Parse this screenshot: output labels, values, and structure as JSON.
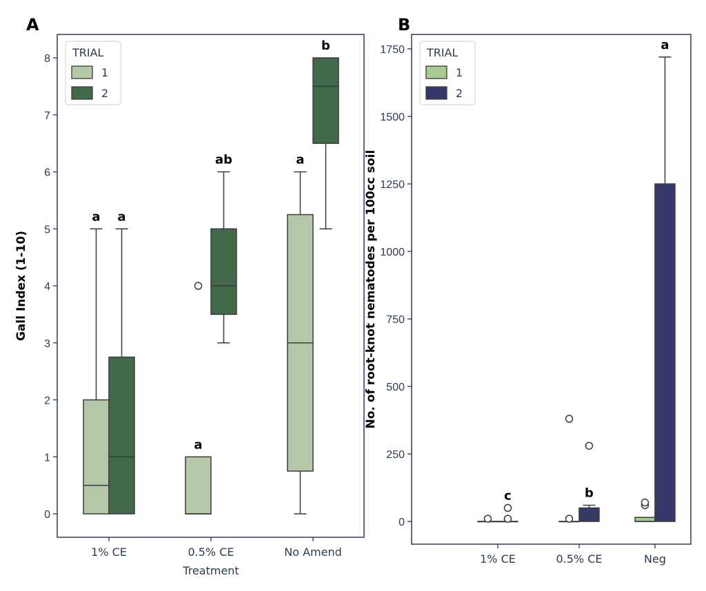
{
  "chart_data": [
    {
      "type": "box",
      "panel_label": "A",
      "xlabel": "Treatment",
      "ylabel": "Gall Index (1-10)",
      "ylim": [
        -0.4,
        8.4
      ],
      "yticks": [
        0,
        1,
        2,
        3,
        4,
        5,
        6,
        7,
        8
      ],
      "categories": [
        "1% CE",
        "0.5% CE",
        "No Amend"
      ],
      "legend": {
        "title": "TRIAL",
        "position": "top-left",
        "entries": [
          "1",
          "2"
        ]
      },
      "colors": [
        "#b5c7a9",
        "#41694a"
      ],
      "series": [
        {
          "name": "1",
          "boxes": [
            {
              "whislo": 0,
              "q1": 0,
              "med": 0.5,
              "q3": 2,
              "whishi": 5,
              "fliers": [],
              "letter": "a"
            },
            {
              "whislo": 0,
              "q1": 0,
              "med": 0,
              "q3": 1,
              "whishi": 1,
              "fliers": [
                4
              ],
              "letter": "a"
            },
            {
              "whislo": 0,
              "q1": 0.75,
              "med": 3,
              "q3": 5.25,
              "whishi": 6,
              "fliers": [],
              "letter": "a"
            }
          ]
        },
        {
          "name": "2",
          "boxes": [
            {
              "whislo": 0,
              "q1": 0,
              "med": 1,
              "q3": 2.75,
              "whishi": 5,
              "fliers": [],
              "letter": "a"
            },
            {
              "whislo": 3,
              "q1": 3.5,
              "med": 4,
              "q3": 5,
              "whishi": 6,
              "fliers": [],
              "letter": "ab"
            },
            {
              "whislo": 5,
              "q1": 6.5,
              "med": 7.5,
              "q3": 8,
              "whishi": 8,
              "fliers": [],
              "letter": "b"
            }
          ]
        }
      ]
    },
    {
      "type": "box",
      "panel_label": "B",
      "xlabel": "",
      "ylabel": "No. of root-knot nematodes per 100cc soil",
      "ylim": [
        -87,
        1800
      ],
      "yticks": [
        0,
        250,
        500,
        750,
        1000,
        1250,
        1500,
        1750
      ],
      "categories": [
        "1% CE",
        "0.5% CE",
        "Neg"
      ],
      "legend": {
        "title": "TRIAL",
        "position": "top-left",
        "entries": [
          "1",
          "2"
        ]
      },
      "colors": [
        "#a6cc90",
        "#353869"
      ],
      "series": [
        {
          "name": "1",
          "boxes": [
            {
              "whislo": 0,
              "q1": 0,
              "med": 0,
              "q3": 0,
              "whishi": 0,
              "fliers": [
                10
              ],
              "letter": ""
            },
            {
              "whislo": 0,
              "q1": 0,
              "med": 0,
              "q3": 0,
              "whishi": 0,
              "fliers": [
                10,
                380
              ],
              "letter": ""
            },
            {
              "whislo": 0,
              "q1": 0,
              "med": 0,
              "q3": 15,
              "whishi": 15,
              "fliers": [
                60,
                70
              ],
              "letter": ""
            }
          ]
        },
        {
          "name": "2",
          "boxes": [
            {
              "whislo": 0,
              "q1": 0,
              "med": 0,
              "q3": 0,
              "whishi": 0,
              "fliers": [
                10,
                50
              ],
              "letter": "c"
            },
            {
              "whislo": 0,
              "q1": 0,
              "med": 20,
              "q3": 50,
              "whishi": 60,
              "fliers": [
                280
              ],
              "letter": "b"
            },
            {
              "whislo": 0,
              "q1": 0,
              "med": 90,
              "q3": 1250,
              "whishi": 1720,
              "fliers": [],
              "letter": "a"
            }
          ]
        }
      ]
    }
  ]
}
